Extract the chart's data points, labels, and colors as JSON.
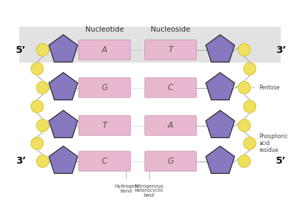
{
  "bg_color": "#ebebeb",
  "white": "#ffffff",
  "pentagon_color": "#8878c0",
  "pentagon_edge": "#333333",
  "circle_color": "#f0e060",
  "circle_edge": "#d4c020",
  "base_box_color": "#e8b8d0",
  "base_box_edge": "#c890b0",
  "line_color": "#aaaaaa",
  "dot_color": "#aaaaaa",
  "title_nucleotide": "Nucleotide",
  "title_nucleoside": "Nucleoside",
  "label_5prime_left": "5’",
  "label_3prime_left": "3’",
  "label_3prime_right": "3’",
  "label_5prime_right": "5’",
  "label_pentose": "Pentose",
  "label_phosphoric": "Phosphoric\nacid\nresidue",
  "label_hydrogen": "Hydrogen\nbond",
  "label_nitrogenous": "Nitrogenous\nheterocyclic\nbase",
  "rows": [
    {
      "left_base": "A",
      "right_base": "T"
    },
    {
      "left_base": "G",
      "right_base": "C"
    },
    {
      "left_base": "T",
      "right_base": "A"
    },
    {
      "left_base": "C",
      "right_base": "G"
    }
  ],
  "header_bg": "#e2e2e2",
  "font_size_title": 7.5,
  "font_size_base": 8.5,
  "font_size_label": 5.0,
  "font_size_prime": 10
}
